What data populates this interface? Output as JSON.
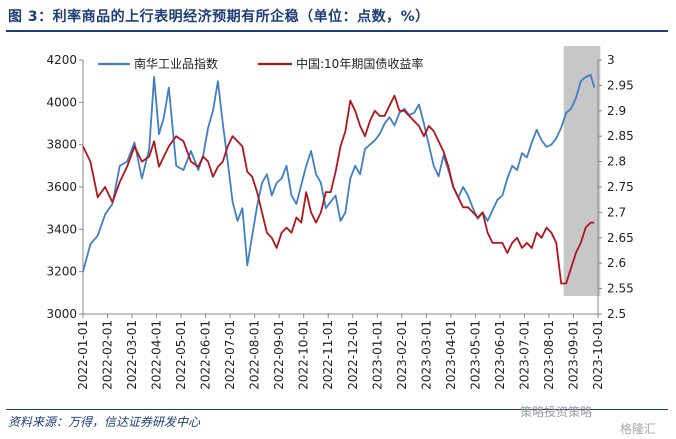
{
  "title": "图 3：利率商品的上行表明经济预期有所企稳（单位：点数，%）",
  "source": "资料来源：万得，信达证券研发中心",
  "watermark": "策略投资策略",
  "watermark2": "格隆汇",
  "colors": {
    "blue": "#3f7fc6",
    "red": "#b3141c",
    "shade": "#bdbdbd",
    "title": "#1f3e78"
  },
  "chart_data": {
    "type": "line",
    "x_tick_labels": [
      "2022-01-01",
      "2022-02-01",
      "2022-03-01",
      "2022-04-01",
      "2022-05-01",
      "2022-06-01",
      "2022-07-01",
      "2022-08-01",
      "2022-09-01",
      "2022-10-01",
      "2022-11-01",
      "2022-12-01",
      "2023-01-01",
      "2023-02-01",
      "2023-03-01",
      "2023-04-01",
      "2023-05-01",
      "2023-06-01",
      "2023-07-01",
      "2023-08-01",
      "2023-09-01",
      "2023-10-01"
    ],
    "y_left": {
      "min": 3000,
      "max": 4200,
      "ticks": [
        3000,
        3200,
        3400,
        3600,
        3800,
        4000,
        4200
      ]
    },
    "y_right": {
      "min": 2.5,
      "max": 3.0,
      "ticks": [
        2.5,
        2.55,
        2.6,
        2.65,
        2.7,
        2.75,
        2.8,
        2.85,
        2.9,
        2.95,
        3.0
      ]
    },
    "highlight": {
      "from_month": 19.6,
      "to_month": 20.85
    },
    "legend_position": "top",
    "series": [
      {
        "name": "南华工业品指数",
        "axis": "left",
        "color": "#3f7fc6",
        "points": [
          [
            0,
            3200
          ],
          [
            0.3,
            3330
          ],
          [
            0.6,
            3370
          ],
          [
            0.9,
            3470
          ],
          [
            1.2,
            3520
          ],
          [
            1.5,
            3700
          ],
          [
            1.8,
            3720
          ],
          [
            2.1,
            3810
          ],
          [
            2.4,
            3640
          ],
          [
            2.7,
            3780
          ],
          [
            2.9,
            4120
          ],
          [
            3.1,
            3850
          ],
          [
            3.3,
            3930
          ],
          [
            3.5,
            4070
          ],
          [
            3.8,
            3700
          ],
          [
            4.1,
            3680
          ],
          [
            4.4,
            3770
          ],
          [
            4.7,
            3680
          ],
          [
            4.9,
            3750
          ],
          [
            5.1,
            3880
          ],
          [
            5.3,
            3960
          ],
          [
            5.5,
            4100
          ],
          [
            5.7,
            3900
          ],
          [
            5.9,
            3720
          ],
          [
            6.1,
            3530
          ],
          [
            6.3,
            3440
          ],
          [
            6.5,
            3500
          ],
          [
            6.7,
            3230
          ],
          [
            6.9,
            3370
          ],
          [
            7.1,
            3510
          ],
          [
            7.3,
            3620
          ],
          [
            7.5,
            3660
          ],
          [
            7.7,
            3560
          ],
          [
            7.9,
            3620
          ],
          [
            8.1,
            3640
          ],
          [
            8.3,
            3700
          ],
          [
            8.5,
            3560
          ],
          [
            8.7,
            3520
          ],
          [
            8.9,
            3610
          ],
          [
            9.1,
            3700
          ],
          [
            9.3,
            3770
          ],
          [
            9.5,
            3660
          ],
          [
            9.7,
            3620
          ],
          [
            9.9,
            3500
          ],
          [
            10.1,
            3530
          ],
          [
            10.3,
            3560
          ],
          [
            10.5,
            3440
          ],
          [
            10.7,
            3480
          ],
          [
            10.9,
            3640
          ],
          [
            11.1,
            3700
          ],
          [
            11.3,
            3660
          ],
          [
            11.5,
            3780
          ],
          [
            11.7,
            3800
          ],
          [
            11.9,
            3820
          ],
          [
            12.1,
            3850
          ],
          [
            12.3,
            3900
          ],
          [
            12.5,
            3930
          ],
          [
            12.7,
            3890
          ],
          [
            12.9,
            3950
          ],
          [
            13.1,
            3970
          ],
          [
            13.3,
            3940
          ],
          [
            13.5,
            3950
          ],
          [
            13.7,
            3990
          ],
          [
            13.9,
            3900
          ],
          [
            14.1,
            3800
          ],
          [
            14.3,
            3700
          ],
          [
            14.5,
            3650
          ],
          [
            14.7,
            3750
          ],
          [
            14.9,
            3680
          ],
          [
            15.1,
            3600
          ],
          [
            15.3,
            3550
          ],
          [
            15.5,
            3600
          ],
          [
            15.7,
            3560
          ],
          [
            15.9,
            3500
          ],
          [
            16.1,
            3450
          ],
          [
            16.3,
            3480
          ],
          [
            16.5,
            3440
          ],
          [
            16.7,
            3490
          ],
          [
            16.9,
            3540
          ],
          [
            17.1,
            3560
          ],
          [
            17.3,
            3640
          ],
          [
            17.5,
            3700
          ],
          [
            17.7,
            3680
          ],
          [
            17.9,
            3760
          ],
          [
            18.1,
            3740
          ],
          [
            18.3,
            3810
          ],
          [
            18.5,
            3870
          ],
          [
            18.7,
            3820
          ],
          [
            18.9,
            3790
          ],
          [
            19.1,
            3800
          ],
          [
            19.3,
            3830
          ],
          [
            19.5,
            3880
          ],
          [
            19.7,
            3950
          ],
          [
            19.9,
            3970
          ],
          [
            20.1,
            4020
          ],
          [
            20.3,
            4100
          ],
          [
            20.5,
            4120
          ],
          [
            20.7,
            4130
          ],
          [
            20.85,
            4070
          ]
        ]
      },
      {
        "name": "中国:10年期国债收益率",
        "axis": "right",
        "color": "#b3141c",
        "points": [
          [
            0,
            2.83
          ],
          [
            0.3,
            2.8
          ],
          [
            0.6,
            2.73
          ],
          [
            0.9,
            2.75
          ],
          [
            1.2,
            2.72
          ],
          [
            1.5,
            2.76
          ],
          [
            1.8,
            2.79
          ],
          [
            2.1,
            2.83
          ],
          [
            2.4,
            2.8
          ],
          [
            2.7,
            2.81
          ],
          [
            2.9,
            2.84
          ],
          [
            3.1,
            2.79
          ],
          [
            3.3,
            2.81
          ],
          [
            3.5,
            2.83
          ],
          [
            3.8,
            2.85
          ],
          [
            4.1,
            2.84
          ],
          [
            4.4,
            2.8
          ],
          [
            4.7,
            2.79
          ],
          [
            4.9,
            2.81
          ],
          [
            5.1,
            2.8
          ],
          [
            5.3,
            2.77
          ],
          [
            5.5,
            2.79
          ],
          [
            5.7,
            2.8
          ],
          [
            5.9,
            2.83
          ],
          [
            6.1,
            2.85
          ],
          [
            6.3,
            2.84
          ],
          [
            6.5,
            2.83
          ],
          [
            6.7,
            2.78
          ],
          [
            6.9,
            2.77
          ],
          [
            7.1,
            2.74
          ],
          [
            7.3,
            2.7
          ],
          [
            7.5,
            2.66
          ],
          [
            7.7,
            2.65
          ],
          [
            7.9,
            2.63
          ],
          [
            8.1,
            2.66
          ],
          [
            8.3,
            2.67
          ],
          [
            8.5,
            2.66
          ],
          [
            8.7,
            2.69
          ],
          [
            8.9,
            2.68
          ],
          [
            9.1,
            2.74
          ],
          [
            9.3,
            2.7
          ],
          [
            9.5,
            2.68
          ],
          [
            9.7,
            2.7
          ],
          [
            9.9,
            2.74
          ],
          [
            10.1,
            2.74
          ],
          [
            10.3,
            2.78
          ],
          [
            10.5,
            2.83
          ],
          [
            10.7,
            2.86
          ],
          [
            10.9,
            2.92
          ],
          [
            11.1,
            2.9
          ],
          [
            11.3,
            2.87
          ],
          [
            11.5,
            2.85
          ],
          [
            11.7,
            2.88
          ],
          [
            11.9,
            2.9
          ],
          [
            12.1,
            2.89
          ],
          [
            12.3,
            2.89
          ],
          [
            12.5,
            2.91
          ],
          [
            12.7,
            2.93
          ],
          [
            12.9,
            2.9
          ],
          [
            13.1,
            2.9
          ],
          [
            13.3,
            2.89
          ],
          [
            13.5,
            2.88
          ],
          [
            13.7,
            2.87
          ],
          [
            13.9,
            2.85
          ],
          [
            14.1,
            2.87
          ],
          [
            14.3,
            2.86
          ],
          [
            14.5,
            2.84
          ],
          [
            14.7,
            2.82
          ],
          [
            14.9,
            2.79
          ],
          [
            15.1,
            2.75
          ],
          [
            15.3,
            2.73
          ],
          [
            15.5,
            2.71
          ],
          [
            15.7,
            2.71
          ],
          [
            15.9,
            2.7
          ],
          [
            16.1,
            2.69
          ],
          [
            16.3,
            2.7
          ],
          [
            16.5,
            2.66
          ],
          [
            16.7,
            2.64
          ],
          [
            16.9,
            2.64
          ],
          [
            17.1,
            2.64
          ],
          [
            17.3,
            2.62
          ],
          [
            17.5,
            2.64
          ],
          [
            17.7,
            2.65
          ],
          [
            17.9,
            2.63
          ],
          [
            18.1,
            2.64
          ],
          [
            18.3,
            2.63
          ],
          [
            18.5,
            2.66
          ],
          [
            18.7,
            2.65
          ],
          [
            18.9,
            2.67
          ],
          [
            19.1,
            2.66
          ],
          [
            19.3,
            2.64
          ],
          [
            19.5,
            2.56
          ],
          [
            19.7,
            2.56
          ],
          [
            19.9,
            2.59
          ],
          [
            20.1,
            2.62
          ],
          [
            20.3,
            2.64
          ],
          [
            20.5,
            2.67
          ],
          [
            20.7,
            2.68
          ],
          [
            20.85,
            2.68
          ]
        ]
      }
    ]
  }
}
